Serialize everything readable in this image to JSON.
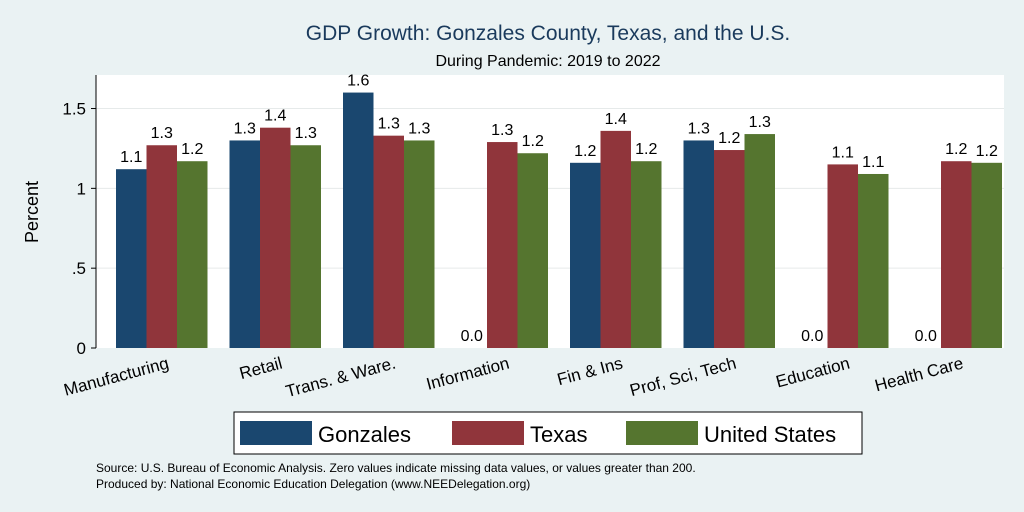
{
  "chart_data": {
    "type": "bar",
    "title": "GDP Growth: Gonzales County, Texas, and the U.S.",
    "subtitle": "During Pandemic: 2019 to 2022",
    "ylabel": "Percent",
    "xlabel": "",
    "ylim": [
      0,
      1.7
    ],
    "yticks": [
      0,
      0.5,
      1,
      1.5
    ],
    "ytick_labels": [
      "0",
      ".5",
      "1",
      "1.5"
    ],
    "grid": true,
    "legend_position": "bottom",
    "categories": [
      "Manufacturing",
      "Retail",
      "Trans. & Ware.",
      "Information",
      "Fin & Ins",
      "Prof, Sci, Tech",
      "Education",
      "Health Care"
    ],
    "series": [
      {
        "name": "Gonzales",
        "color": "#1a476f",
        "values": [
          1.12,
          1.3,
          1.6,
          0,
          1.16,
          1.3,
          0,
          0
        ],
        "labels": [
          "1.1",
          "1.3",
          "1.6",
          "0.0",
          "1.2",
          "1.3",
          "0.0",
          "0.0"
        ]
      },
      {
        "name": "Texas",
        "color": "#90353b",
        "values": [
          1.27,
          1.38,
          1.33,
          1.29,
          1.36,
          1.24,
          1.15,
          1.17
        ],
        "labels": [
          "1.3",
          "1.4",
          "1.3",
          "1.3",
          "1.4",
          "1.2",
          "1.1",
          "1.2"
        ]
      },
      {
        "name": "United States",
        "color": "#55752f",
        "values": [
          1.17,
          1.27,
          1.3,
          1.22,
          1.17,
          1.34,
          1.09,
          1.16
        ],
        "labels": [
          "1.2",
          "1.3",
          "1.3",
          "1.2",
          "1.2",
          "1.3",
          "1.1",
          "1.2"
        ]
      }
    ],
    "notes": [
      "Source: U.S. Bureau of Economic Analysis. Zero values indicate missing data values, or values greater than 200.",
      "Produced by: National Economic Education Delegation (www.NEEDelegation.org)"
    ]
  }
}
